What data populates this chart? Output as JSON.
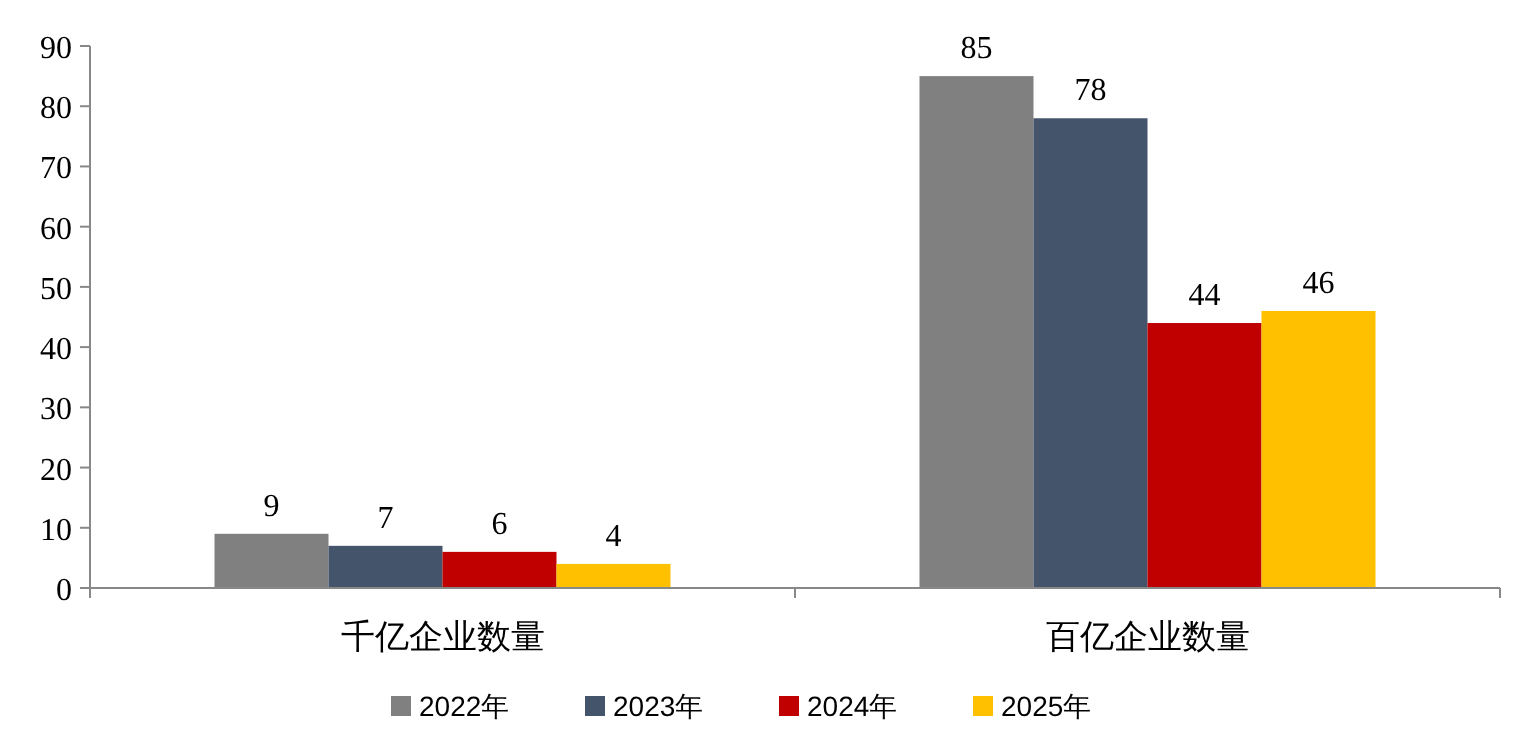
{
  "chart_data": {
    "type": "bar",
    "categories": [
      "千亿企业数量",
      "百亿企业数量"
    ],
    "series": [
      {
        "name": "2022年",
        "color": "#808080",
        "values": [
          9,
          85
        ]
      },
      {
        "name": "2023年",
        "color": "#44546a",
        "values": [
          7,
          78
        ]
      },
      {
        "name": "2024年",
        "color": "#c00000",
        "values": [
          6,
          44
        ]
      },
      {
        "name": "2025年",
        "color": "#ffc000",
        "values": [
          4,
          46
        ]
      }
    ],
    "ylim": [
      0,
      90
    ],
    "yticks": [
      0,
      10,
      20,
      30,
      40,
      50,
      60,
      70,
      80,
      90
    ],
    "data_labels": true,
    "legend": "bottom",
    "grid": false
  }
}
